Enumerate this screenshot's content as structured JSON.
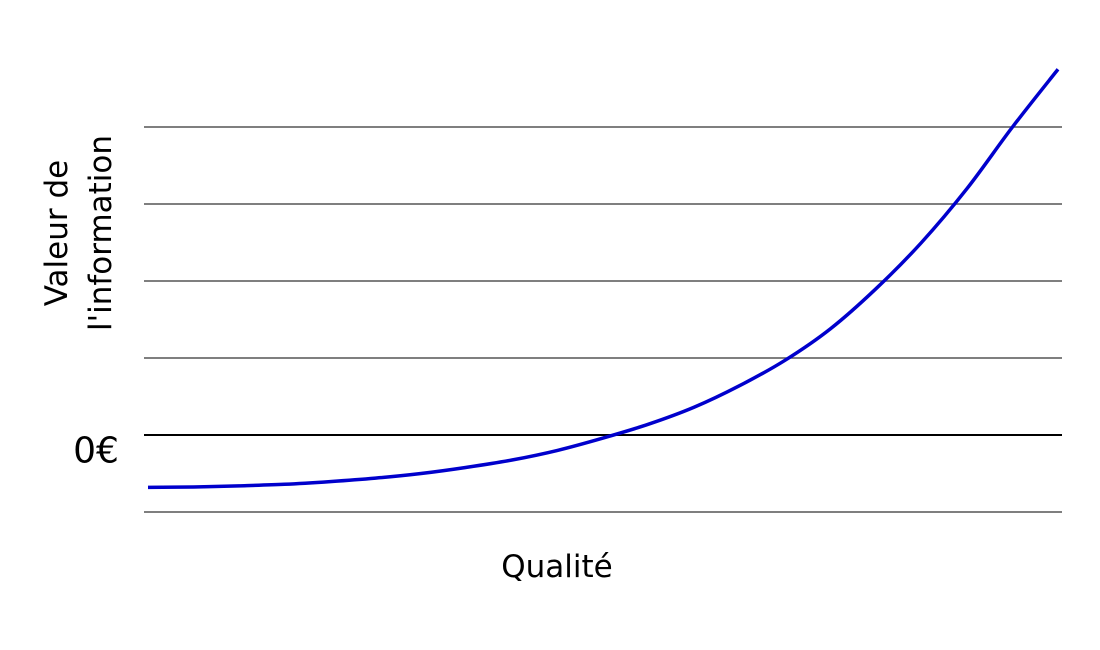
{
  "chart_data": {
    "type": "line",
    "title": "",
    "xlabel": "Qualité",
    "ylabel_lines": [
      "Valeur de",
      "l'information"
    ],
    "yticks": [
      {
        "value": -1,
        "label": ""
      },
      {
        "value": 0,
        "label": "0€"
      },
      {
        "value": 1,
        "label": ""
      },
      {
        "value": 2,
        "label": ""
      },
      {
        "value": 3,
        "label": ""
      },
      {
        "value": 4,
        "label": ""
      }
    ],
    "xlim": [
      0,
      10
    ],
    "ylim": [
      -1,
      4.75
    ],
    "grid": true,
    "grid_color": "#555555",
    "zero_line_color": "#000000",
    "series": [
      {
        "color": "#0000cc",
        "x": [
          0,
          0.5,
          1,
          1.5,
          2,
          2.5,
          3,
          3.5,
          4,
          4.5,
          5,
          5.5,
          6,
          6.5,
          7,
          7.5,
          8,
          8.5,
          9,
          9.5,
          10
        ],
        "y": [
          -0.68,
          -0.675,
          -0.66,
          -0.64,
          -0.605,
          -0.56,
          -0.5,
          -0.42,
          -0.325,
          -0.2,
          -0.04,
          0.14,
          0.36,
          0.64,
          0.97,
          1.38,
          1.9,
          2.5,
          3.2,
          4.0,
          4.75
        ]
      }
    ]
  }
}
